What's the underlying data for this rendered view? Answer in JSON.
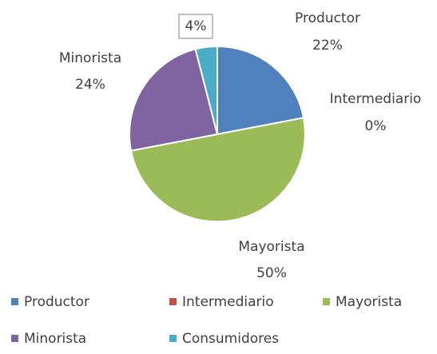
{
  "chart_data": {
    "type": "pie",
    "series": [
      {
        "name": "Productor",
        "value": 22,
        "color": "#4f81bd",
        "label": "22%"
      },
      {
        "name": "Intermediario",
        "value": 0,
        "color": "#c0504d",
        "label": "0%"
      },
      {
        "name": "Mayorista",
        "value": 50,
        "color": "#9bbb59",
        "label": "50%"
      },
      {
        "name": "Minorista",
        "value": 24,
        "color": "#8064a2",
        "label": "24%"
      },
      {
        "name": "Consumidores",
        "value": 4,
        "color": "#4bacc6",
        "label": "4%"
      }
    ],
    "legend_position": "bottom",
    "title": ""
  }
}
